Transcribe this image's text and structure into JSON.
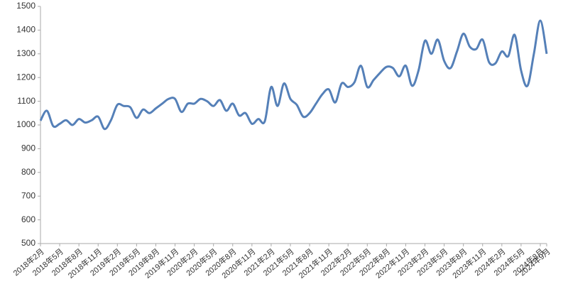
{
  "chart_data": {
    "type": "line",
    "categories": [
      "2018年2月",
      null,
      null,
      "2018年5月",
      null,
      null,
      "2018年8月",
      null,
      null,
      "2018年11月",
      null,
      null,
      "2019年2月",
      null,
      null,
      "2019年5月",
      null,
      null,
      "2019年8月",
      null,
      null,
      "2019年11月",
      null,
      null,
      "2020年2月",
      null,
      null,
      "2020年5月",
      null,
      null,
      "2020年8月",
      null,
      null,
      "2020年11月",
      null,
      null,
      "2021年2月",
      null,
      null,
      "2021年5月",
      null,
      null,
      "2021年8月",
      null,
      null,
      "2021年11月",
      null,
      null,
      "2022年2月",
      null,
      null,
      "2022年5月",
      null,
      null,
      "2022年8月",
      null,
      null,
      "2022年11月",
      null,
      null,
      "2023年2月",
      null,
      null,
      "2023年5月",
      null,
      null,
      "2023年8月",
      null,
      null,
      "2023年11月",
      null,
      null,
      "2024年2月",
      null,
      null,
      "2024年5月",
      null,
      null,
      "2024年8月",
      "2024年9月"
    ],
    "values": [
      1018,
      1060,
      995,
      1005,
      1020,
      1000,
      1025,
      1010,
      1020,
      1035,
      983,
      1020,
      1085,
      1080,
      1075,
      1030,
      1065,
      1050,
      1070,
      1090,
      1110,
      1110,
      1055,
      1090,
      1090,
      1110,
      1100,
      1080,
      1105,
      1060,
      1090,
      1040,
      1050,
      1005,
      1025,
      1015,
      1160,
      1080,
      1175,
      1110,
      1085,
      1035,
      1050,
      1090,
      1130,
      1150,
      1095,
      1175,
      1160,
      1180,
      1250,
      1160,
      1190,
      1220,
      1245,
      1240,
      1205,
      1250,
      1165,
      1230,
      1355,
      1300,
      1360,
      1270,
      1240,
      1310,
      1385,
      1330,
      1320,
      1360,
      1265,
      1260,
      1310,
      1290,
      1380,
      1230,
      1165,
      1300,
      1440,
      1300
    ],
    "color": "#5580b8",
    "ylim": [
      500,
      1500
    ],
    "yticks": [
      500,
      600,
      700,
      800,
      900,
      1000,
      1100,
      1200,
      1300,
      1400,
      1500
    ],
    "grid": false
  }
}
